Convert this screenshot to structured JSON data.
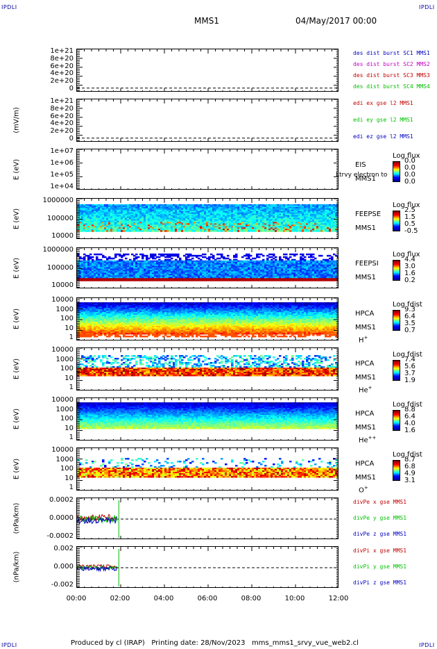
{
  "corner_left": "IPDLI",
  "corner_right": "IPDLI",
  "header": {
    "spacecraft": "MMS1",
    "datetime": "04/May/2017 00:00"
  },
  "footer": "Produced by cl (IRAP)   Printing date: 28/Nov/2023   mms_mms1_srvy_vue_web2.cl",
  "colors": {
    "black": "#000000",
    "blue": "#0000c0",
    "magenta": "#c000c0",
    "red": "#c00000",
    "green": "#00c000"
  },
  "chart_data": {
    "type": "multi-panel time series",
    "x_tick_labels": [
      "00:00",
      "02:00",
      "04:00",
      "06:00",
      "08:00",
      "10:00",
      "12:00"
    ],
    "x_range_hours": [
      0,
      12
    ],
    "panels": [
      {
        "id": "des-dist",
        "type": "line",
        "ylabel": "",
        "yticks": [
          "1e+21",
          "8e+20",
          "6e+20",
          "4e+20",
          "2e+20",
          "0"
        ],
        "legend": [
          {
            "text": "des dist burst SC1 MMS1",
            "color": "#0000c0"
          },
          {
            "text": "des dist burst SC2 MMS2",
            "color": "#c000c0"
          },
          {
            "text": "des dist burst SC3 MMS3",
            "color": "#c00000"
          },
          {
            "text": "des dist burst SC4 MMS4",
            "color": "#00c000"
          }
        ]
      },
      {
        "id": "edi",
        "type": "line",
        "ylabel": "(mV/m)",
        "yticks": [
          "1e+21",
          "8e+20",
          "6e+20",
          "4e+20",
          "2e+20",
          "0"
        ],
        "legend": [
          {
            "text": "edi ex gse l2 MMS1",
            "color": "#c00000"
          },
          {
            "text": "edi ey gse l2 MMS1",
            "color": "#00c000"
          },
          {
            "text": "edi ez gse l2 MMS1",
            "color": "#0000c0"
          }
        ]
      },
      {
        "id": "eis",
        "type": "heatmap",
        "ylabel": "E (eV)",
        "yticks": [
          "1e+07",
          "1e+06",
          "1e+05",
          "1e+04"
        ],
        "labels": [
          "EIS",
          "MMS1"
        ],
        "overlay": "Ltrvy electron to",
        "cbar_title": "Log flux",
        "cbar_ticks": [
          "0.0",
          "0.0",
          "0.0",
          "0.0"
        ]
      },
      {
        "id": "feepse",
        "type": "heatmap",
        "ylabel": "E (eV)",
        "yticks": [
          "1000000",
          "100000",
          "10000"
        ],
        "labels": [
          "FEEPSE",
          "MMS1"
        ],
        "cbar_title": "Log flux",
        "cbar_ticks": [
          "2.5",
          "1.5",
          "0.5",
          "-0.5"
        ]
      },
      {
        "id": "feepsi",
        "type": "heatmap",
        "ylabel": "E (eV)",
        "yticks": [
          "1000000",
          "100000",
          "10000"
        ],
        "labels": [
          "FEEPSI",
          "MMS1"
        ],
        "cbar_title": "Log flux",
        "cbar_ticks": [
          "4.4",
          "3.0",
          "1.6",
          "0.2"
        ]
      },
      {
        "id": "hpca-h",
        "type": "heatmap",
        "ylabel": "E (eV)",
        "yticks": [
          "10000",
          "1000",
          "100",
          "10",
          "1"
        ],
        "labels": [
          "HPCA",
          "MMS1"
        ],
        "species": "H",
        "species_sup": "+",
        "cbar_title": "Log fdist",
        "cbar_ticks": [
          "9.3",
          "6.4",
          "3.5",
          "0.7"
        ]
      },
      {
        "id": "hpca-he",
        "type": "heatmap",
        "ylabel": "E (eV)",
        "yticks": [
          "10000",
          "1000",
          "100",
          "10",
          "1"
        ],
        "labels": [
          "HPCA",
          "MMS1"
        ],
        "species": "He",
        "species_sup": "+",
        "cbar_title": "Log fdist",
        "cbar_ticks": [
          "7.4",
          "5.6",
          "3.7",
          "1.9"
        ]
      },
      {
        "id": "hpca-hepp",
        "type": "heatmap",
        "ylabel": "E (eV)",
        "yticks": [
          "10000",
          "1000",
          "100",
          "10",
          "1"
        ],
        "labels": [
          "HPCA",
          "MMS1"
        ],
        "species": "He",
        "species_sup": "++",
        "cbar_title": "Log fdist",
        "cbar_ticks": [
          "8.8",
          "6.4",
          "4.0",
          "1.6"
        ]
      },
      {
        "id": "hpca-o",
        "type": "heatmap",
        "ylabel": "E (eV)",
        "yticks": [
          "10000",
          "1000",
          "100",
          "10",
          "1"
        ],
        "labels": [
          "HPCA",
          "MMS1"
        ],
        "species": "O",
        "species_sup": "+",
        "cbar_title": "Log fdist",
        "cbar_ticks": [
          "8.7",
          "6.8",
          "4.9",
          "3.1"
        ]
      },
      {
        "id": "divpe",
        "type": "line",
        "ylabel": "(nPa/km)",
        "yticks": [
          "0.0002",
          "0.0000",
          "-0.0002"
        ],
        "legend": [
          {
            "text": "divPe x gse MMS1",
            "color": "#c00000"
          },
          {
            "text": "divPe y gse MMS1",
            "color": "#00c000"
          },
          {
            "text": "divPe z gse MMS1",
            "color": "#0000c0"
          }
        ]
      },
      {
        "id": "divpi",
        "type": "line",
        "ylabel": "(nPa/km)",
        "yticks": [
          "0.002",
          "0.000",
          "-0.002"
        ],
        "legend": [
          {
            "text": "divPi x gse MMS1",
            "color": "#c00000"
          },
          {
            "text": "divPi y gse MMS1",
            "color": "#00c000"
          },
          {
            "text": "divPi z gse MMS1",
            "color": "#0000c0"
          }
        ]
      }
    ]
  }
}
